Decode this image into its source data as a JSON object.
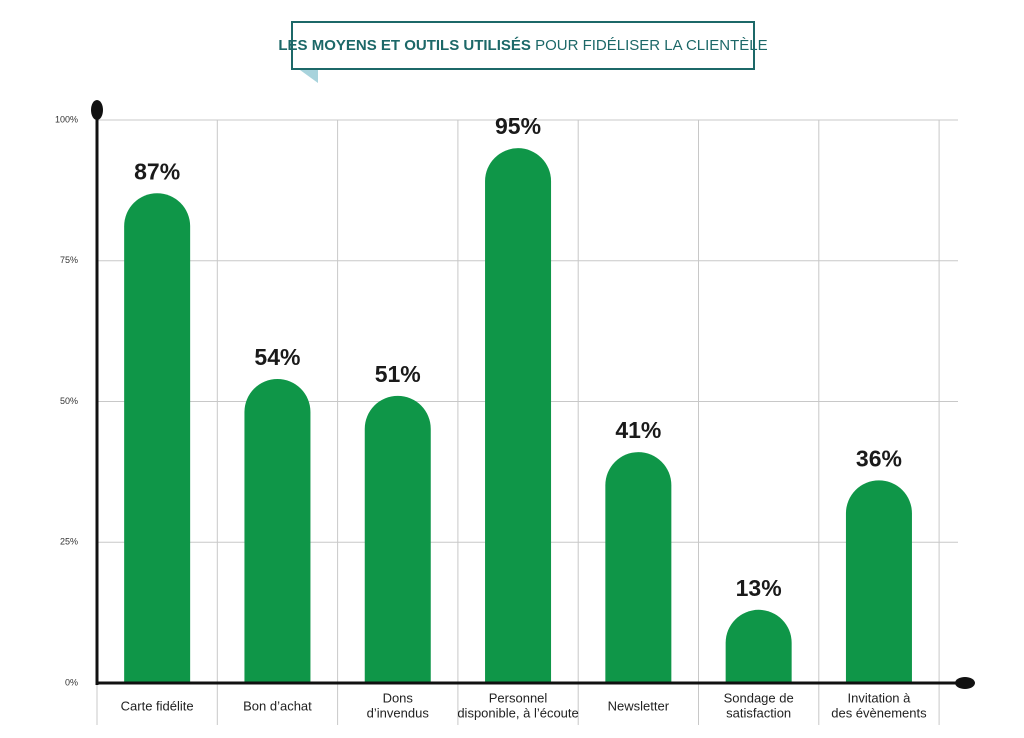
{
  "chart_data": {
    "type": "bar",
    "title": {
      "bold": "LES MOYENS ET OUTILS UTILISÉS",
      "regular": "POUR FIDÉLISER LA CLIENTÈLE"
    },
    "categories": [
      "Carte fidélite",
      "Bon d’achat",
      "Dons\nd’invendus",
      "Personnel\ndisponible, à l’écoute",
      "Newsletter",
      "Sondage de\nsatisfaction",
      "Invitation à\ndes évènements"
    ],
    "values": [
      87,
      54,
      51,
      95,
      41,
      13,
      36
    ],
    "value_labels": [
      "87%",
      "54%",
      "51%",
      "95%",
      "41%",
      "13%",
      "36%"
    ],
    "color": "#0f9648",
    "ylim": [
      0,
      100
    ],
    "yticks": [
      {
        "value": 0,
        "label": "0%"
      },
      {
        "value": 25,
        "label": "25%"
      },
      {
        "value": 50,
        "label": "50%"
      },
      {
        "value": 75,
        "label": "75%"
      },
      {
        "value": 100,
        "label": "100%"
      }
    ],
    "grid": true
  }
}
